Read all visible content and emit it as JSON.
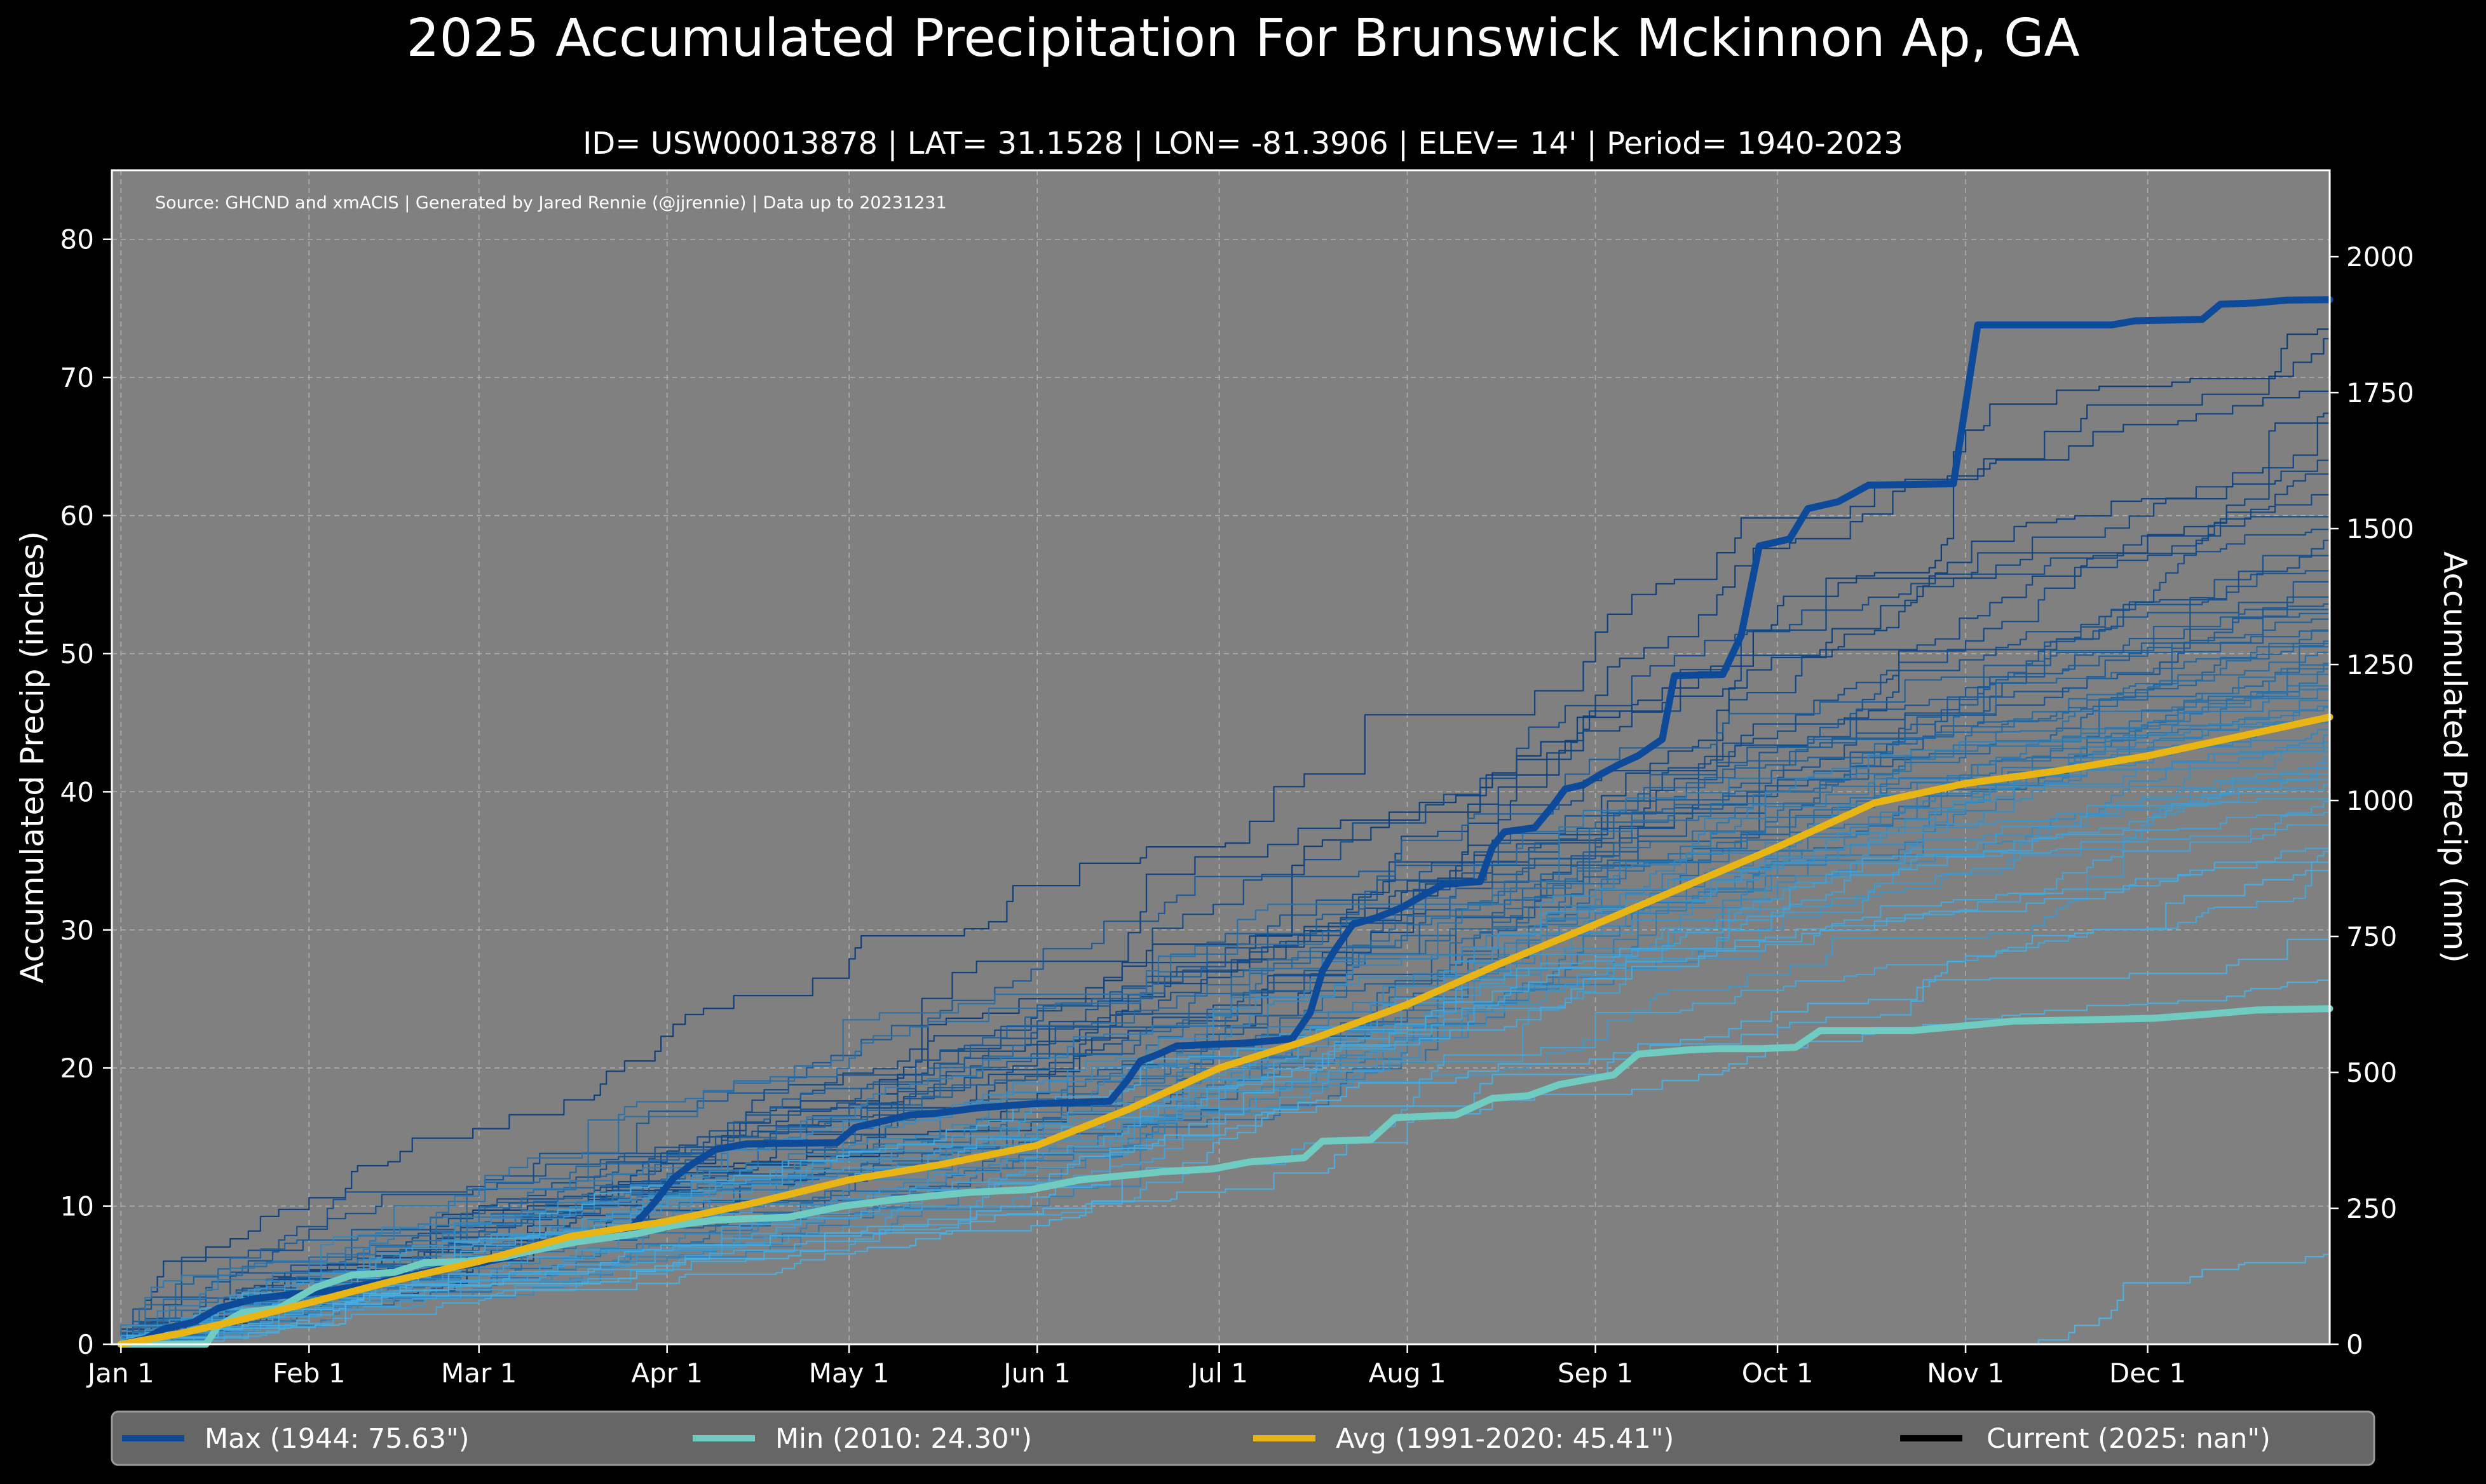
{
  "chart_data": {
    "type": "line",
    "title": "2025 Accumulated Precipitation For Brunswick Mckinnon Ap, GA",
    "subtitle": "ID= USW00013878 | LAT= 31.1528 | LON= -81.3906 | ELEV= 14' | Period= 1940-2023",
    "source_note": "Source: GHCND and xmACIS | Generated by Jared Rennie (@jjrennie) | Data up to 20231231",
    "ylabel_left": "Accumulated Precip (inches)",
    "ylabel_right": "Accumulated Precip (mm)",
    "ylim": [
      0,
      85
    ],
    "xlim_day": [
      -1.5,
      364
    ],
    "grid": true,
    "background": "#808080",
    "legend_placement": "bottom",
    "x_ticks": [
      {
        "label": "Jan 1",
        "day": 0
      },
      {
        "label": "Feb 1",
        "day": 31
      },
      {
        "label": "Mar 1",
        "day": 59
      },
      {
        "label": "Apr 1",
        "day": 90
      },
      {
        "label": "May 1",
        "day": 120
      },
      {
        "label": "Jun 1",
        "day": 151
      },
      {
        "label": "Jul 1",
        "day": 181
      },
      {
        "label": "Aug 1",
        "day": 212
      },
      {
        "label": "Sep 1",
        "day": 243
      },
      {
        "label": "Oct 1",
        "day": 273
      },
      {
        "label": "Nov 1",
        "day": 304
      },
      {
        "label": "Dec 1",
        "day": 334
      }
    ],
    "y_ticks_left": [
      "0",
      "10",
      "20",
      "30",
      "40",
      "50",
      "60",
      "70",
      "80"
    ],
    "y_ticks_right": [
      "0",
      "250",
      "500",
      "750",
      "1000",
      "1250",
      "1500",
      "1750",
      "2000"
    ],
    "series": [
      {
        "name": "Max (1944:  75.63\")",
        "color": "#0d4a99",
        "points": [
          [
            0,
            0
          ],
          [
            4,
            0.4
          ],
          [
            7,
            1.1
          ],
          [
            12,
            1.6
          ],
          [
            16,
            2.6
          ],
          [
            22,
            3.3
          ],
          [
            28,
            3.6
          ],
          [
            35,
            3.9
          ],
          [
            44,
            4.6
          ],
          [
            52,
            5.4
          ],
          [
            58,
            5.8
          ],
          [
            64,
            6.3
          ],
          [
            70,
            7.1
          ],
          [
            75,
            7.7
          ],
          [
            80,
            8.2
          ],
          [
            84,
            8.4
          ],
          [
            86,
            9.3
          ],
          [
            88,
            10.3
          ],
          [
            91,
            12.0
          ],
          [
            94,
            13.0
          ],
          [
            98,
            14.1
          ],
          [
            103,
            14.5
          ],
          [
            118,
            14.6
          ],
          [
            121,
            15.7
          ],
          [
            126,
            16.2
          ],
          [
            130,
            16.6
          ],
          [
            134,
            16.7
          ],
          [
            141,
            17.1
          ],
          [
            150,
            17.4
          ],
          [
            163,
            17.6
          ],
          [
            166,
            19.2
          ],
          [
            168,
            20.5
          ],
          [
            171,
            21.0
          ],
          [
            174,
            21.6
          ],
          [
            185,
            21.8
          ],
          [
            193,
            22.1
          ],
          [
            196,
            24.0
          ],
          [
            198,
            27.0
          ],
          [
            200,
            28.5
          ],
          [
            203,
            30.4
          ],
          [
            207,
            30.9
          ],
          [
            211,
            31.6
          ],
          [
            215,
            32.6
          ],
          [
            218,
            33.3
          ],
          [
            224,
            33.5
          ],
          [
            226,
            36.0
          ],
          [
            228,
            37.1
          ],
          [
            233,
            37.4
          ],
          [
            236,
            39.0
          ],
          [
            238,
            40.2
          ],
          [
            241,
            40.5
          ],
          [
            244,
            41.3
          ],
          [
            247,
            42.0
          ],
          [
            250,
            42.6
          ],
          [
            254,
            43.8
          ],
          [
            256,
            48.4
          ],
          [
            264,
            48.5
          ],
          [
            267,
            51.3
          ],
          [
            270,
            57.8
          ],
          [
            275,
            58.3
          ],
          [
            278,
            60.5
          ],
          [
            283,
            61.0
          ],
          [
            288,
            62.2
          ],
          [
            302,
            62.3
          ],
          [
            306,
            73.8
          ],
          [
            328,
            73.8
          ],
          [
            332,
            74.1
          ],
          [
            343,
            74.2
          ],
          [
            346,
            75.3
          ],
          [
            352,
            75.4
          ],
          [
            357,
            75.6
          ],
          [
            364,
            75.63
          ]
        ]
      },
      {
        "name": "Min (2010:  24.30\")",
        "color": "#70cbc1",
        "points": [
          [
            0,
            0
          ],
          [
            14,
            0.0
          ],
          [
            16,
            1.3
          ],
          [
            20,
            2.3
          ],
          [
            26,
            2.6
          ],
          [
            32,
            4.1
          ],
          [
            38,
            5.0
          ],
          [
            45,
            5.2
          ],
          [
            50,
            5.9
          ],
          [
            57,
            6.0
          ],
          [
            63,
            6.3
          ],
          [
            68,
            6.8
          ],
          [
            75,
            7.4
          ],
          [
            85,
            8.0
          ],
          [
            91,
            8.6
          ],
          [
            98,
            9.0
          ],
          [
            110,
            9.2
          ],
          [
            119,
            10.0
          ],
          [
            128,
            10.5
          ],
          [
            140,
            11.0
          ],
          [
            150,
            11.2
          ],
          [
            158,
            11.9
          ],
          [
            165,
            12.2
          ],
          [
            172,
            12.5
          ],
          [
            180,
            12.7
          ],
          [
            186,
            13.2
          ],
          [
            195,
            13.5
          ],
          [
            198,
            14.7
          ],
          [
            206,
            14.8
          ],
          [
            210,
            16.4
          ],
          [
            220,
            16.6
          ],
          [
            226,
            17.8
          ],
          [
            232,
            18.0
          ],
          [
            237,
            18.8
          ],
          [
            242,
            19.2
          ],
          [
            246,
            19.5
          ],
          [
            250,
            21.0
          ],
          [
            258,
            21.3
          ],
          [
            263,
            21.4
          ],
          [
            270,
            21.4
          ],
          [
            276,
            21.5
          ],
          [
            280,
            22.7
          ],
          [
            295,
            22.7
          ],
          [
            300,
            22.9
          ],
          [
            305,
            23.1
          ],
          [
            312,
            23.4
          ],
          [
            325,
            23.5
          ],
          [
            335,
            23.6
          ],
          [
            344,
            23.9
          ],
          [
            352,
            24.2
          ],
          [
            364,
            24.3
          ]
        ]
      },
      {
        "name": "Avg (1991-2020:  45.41\")",
        "color": "#e9b515",
        "points": [
          [
            0,
            0
          ],
          [
            10,
            0.8
          ],
          [
            20,
            1.8
          ],
          [
            31,
            3.0
          ],
          [
            45,
            4.6
          ],
          [
            59,
            6.0
          ],
          [
            74,
            7.8
          ],
          [
            90,
            8.9
          ],
          [
            105,
            10.3
          ],
          [
            120,
            11.9
          ],
          [
            135,
            13.0
          ],
          [
            151,
            14.4
          ],
          [
            166,
            17.0
          ],
          [
            181,
            20.0
          ],
          [
            197,
            22.2
          ],
          [
            212,
            24.6
          ],
          [
            227,
            27.5
          ],
          [
            243,
            30.4
          ],
          [
            258,
            33.2
          ],
          [
            273,
            36.0
          ],
          [
            289,
            39.2
          ],
          [
            304,
            40.6
          ],
          [
            319,
            41.5
          ],
          [
            334,
            42.6
          ],
          [
            349,
            44.0
          ],
          [
            364,
            45.41
          ]
        ]
      },
      {
        "name": "Current (2025:    nan\")",
        "color": "#000000",
        "points": []
      }
    ],
    "background_years": {
      "count_shown": 60,
      "color_range": [
        "#083a7a",
        "#4bb2e4"
      ],
      "final_totals_inches": [
        73.5,
        72.8,
        69.0,
        67.4,
        66.7,
        64.0,
        63.0,
        61.5,
        60.3,
        59.0,
        58.2,
        57.1,
        56.0,
        55.2,
        54.1,
        53.6,
        53.2,
        52.9,
        52.5,
        52.0,
        51.7,
        51.3,
        50.9,
        50.5,
        50.1,
        49.7,
        49.3,
        48.9,
        48.5,
        48.1,
        47.8,
        47.4,
        47.0,
        46.6,
        46.2,
        45.8,
        45.5,
        45.0,
        44.5,
        44.1,
        43.6,
        43.2,
        42.9,
        42.5,
        42.1,
        41.7,
        41.3,
        40.9,
        40.5,
        40.0,
        39.3,
        38.5,
        37.6,
        36.8,
        35.9,
        35.1,
        34.3,
        29.3,
        26.7,
        6.5
      ]
    }
  },
  "legend": {
    "max_label": "Max (1944:  75.63\")",
    "min_label": "Min (2010:  24.30\")",
    "avg_label": "Avg (1991-2020:  45.41\")",
    "current_label": "Current (2025:    nan\")"
  }
}
